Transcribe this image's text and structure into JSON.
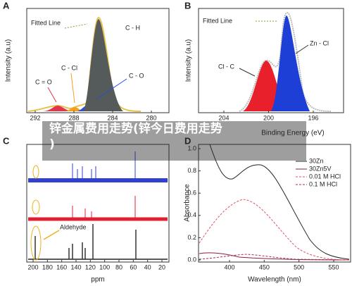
{
  "panels": [
    {
      "label": "A",
      "legend": "Fitted Line",
      "peaks": [
        "C - H",
        "C = O",
        "C - Cl",
        "C - O"
      ],
      "ylabel": "Intensity (a.u)",
      "xticks": [
        "292",
        "288",
        "284",
        "280"
      ]
    },
    {
      "label": "B",
      "legend": "Fitted Line",
      "peaks": [
        "Zn - Cl",
        "Cl - C"
      ],
      "ylabel": "Intensity (a.u)",
      "xlabel": "Binding Energy (eV)",
      "xticks": [
        "204",
        "200",
        "196"
      ]
    },
    {
      "label": "C",
      "annotation": "Aldehyde",
      "xlabel": "ppm",
      "xticks": [
        "200",
        "180",
        "160",
        "140",
        "120",
        "100",
        "80",
        "60",
        "40",
        "20"
      ]
    },
    {
      "label": "D",
      "ylabel": "Absorbance",
      "xlabel": "Wavelength (nm)",
      "xticks": [
        "400",
        "450",
        "500",
        "550"
      ],
      "yticks": [
        "1.0",
        "0.8",
        "0.6",
        "0.4",
        "0.2",
        "0.0"
      ],
      "legend": [
        "30Zn",
        "30Zn5V",
        "0.01 M HCl",
        "0.1 M HCl"
      ]
    }
  ],
  "overlay": [
    "锌金属费用走势(锌今日费用走势",
    ")"
  ]
}
